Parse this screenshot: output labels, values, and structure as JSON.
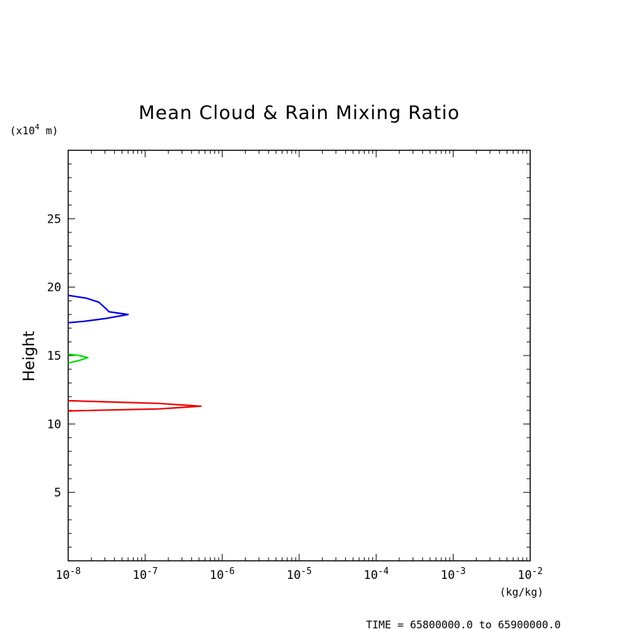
{
  "chart_data": {
    "type": "line",
    "title": "Mean Cloud & Rain Mixing Ratio",
    "ylabel": "Height",
    "y_unit": "(x10",
    "y_unit_exp": "4",
    "y_unit_tail": " m)",
    "x_unit": "(kg/kg)",
    "x_scale": "log",
    "xlim": [
      1e-08,
      0.01
    ],
    "ylim": [
      0,
      30
    ],
    "x_ticks": [
      {
        "exp": "-8"
      },
      {
        "exp": "-7"
      },
      {
        "exp": "-6"
      },
      {
        "exp": "-5"
      },
      {
        "exp": "-4"
      },
      {
        "exp": "-3"
      },
      {
        "exp": "-2"
      }
    ],
    "x_tick_base": "10",
    "y_ticks": [
      "5",
      "10",
      "15",
      "20",
      "25"
    ],
    "series": [
      {
        "color": "#0000dd",
        "points": [
          [
            1e-08,
            19.4
          ],
          [
            1.7e-08,
            19.2
          ],
          [
            2.5e-08,
            18.9
          ],
          [
            3e-08,
            18.5
          ],
          [
            3.4e-08,
            18.2
          ],
          [
            6e-08,
            18.0
          ],
          [
            3e-08,
            17.7
          ],
          [
            1.6e-08,
            17.5
          ],
          [
            1e-08,
            17.4
          ]
        ]
      },
      {
        "color": "#00dd00",
        "points": [
          [
            1e-08,
            15.1
          ],
          [
            1.4e-08,
            15.0
          ],
          [
            1.8e-08,
            14.85
          ],
          [
            1.4e-08,
            14.65
          ],
          [
            1e-08,
            14.45
          ]
        ]
      },
      {
        "color": "#ee0000",
        "points": [
          [
            1e-08,
            11.7
          ],
          [
            1.5e-07,
            11.5
          ],
          [
            5.3e-07,
            11.3
          ],
          [
            1.5e-07,
            11.1
          ],
          [
            1e-08,
            10.95
          ]
        ]
      }
    ],
    "footer": "TIME = 65800000.0 to 65900000.0"
  }
}
